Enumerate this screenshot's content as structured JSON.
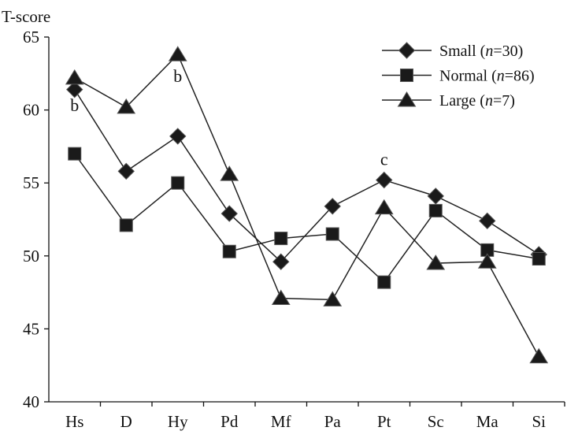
{
  "chart_data": {
    "type": "line",
    "ylabel": "T-score",
    "xlabel": "",
    "ylim": [
      40,
      65
    ],
    "yticks": [
      40,
      45,
      50,
      55,
      60,
      65
    ],
    "categories": [
      "Hs",
      "D",
      "Hy",
      "Pd",
      "Mf",
      "Pa",
      "Pt",
      "Sc",
      "Ma",
      "Si"
    ],
    "grid": false,
    "legend_position": "top-right",
    "series": [
      {
        "name": "Small (n=30)",
        "name_prefix": "Small (",
        "name_italic": "n",
        "name_suffix": "=30)",
        "marker": "diamond",
        "values": [
          61.4,
          55.8,
          58.2,
          52.9,
          49.6,
          53.4,
          55.2,
          54.1,
          52.4,
          50.1
        ]
      },
      {
        "name": "Normal (n=86)",
        "name_prefix": "Normal (",
        "name_italic": "n",
        "name_suffix": "=86)",
        "marker": "square",
        "values": [
          57.0,
          52.1,
          55.0,
          50.3,
          51.2,
          51.5,
          48.2,
          53.1,
          50.4,
          49.8
        ]
      },
      {
        "name": "Large (n=7)",
        "name_prefix": "Large (",
        "name_italic": "n",
        "name_suffix": "=7)",
        "marker": "triangle",
        "values": [
          62.2,
          60.2,
          63.8,
          55.6,
          47.1,
          47.0,
          53.3,
          49.5,
          49.6,
          43.1
        ]
      }
    ],
    "annotations": [
      {
        "text": "b",
        "category": "Hs",
        "y": 60.3
      },
      {
        "text": "b",
        "category": "Hy",
        "y": 62.3
      },
      {
        "text": "c",
        "category": "Pt",
        "y": 56.6
      }
    ]
  }
}
